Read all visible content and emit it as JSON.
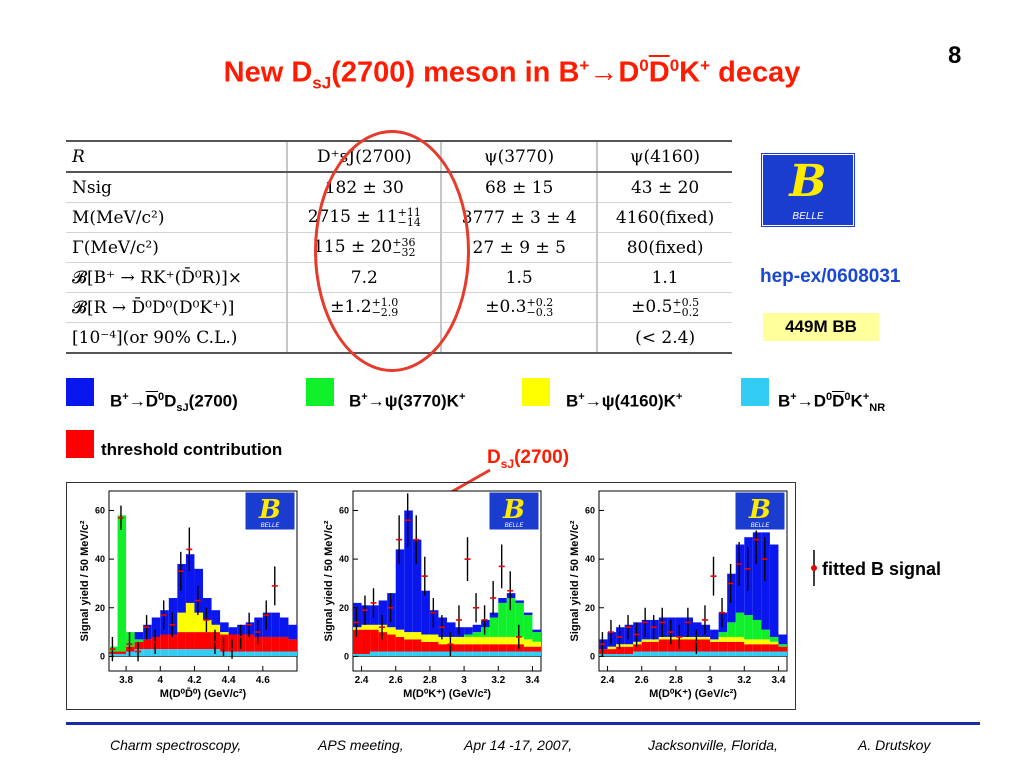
{
  "slide": {
    "number": "8",
    "title": {
      "t1": "New D",
      "sub1": "sJ",
      "t2": "(2700)  meson in B",
      "sup1": "+",
      "arrow": "→",
      "t3": "D",
      "sup2": "0",
      "t4": "D",
      "sup3": "0",
      "t5": "K",
      "sup4": "+",
      "t6": " decay"
    }
  },
  "table": {
    "header": [
      "R",
      "D⁺sJ(2700)",
      "ψ(3770)",
      "ψ(4160)"
    ],
    "rows": [
      {
        "label": "Nsig",
        "c1": "182 ± 30",
        "c2": "68 ± 15",
        "c3": "43 ± 20"
      },
      {
        "label": "M(MeV/c²)",
        "c1": "2715 ± 11",
        "c1_up": "+11",
        "c1_dn": "−14",
        "c2": "3777 ± 3 ± 4",
        "c3": "4160(fixed)"
      },
      {
        "label": "Γ(MeV/c²)",
        "c1": "115 ± 20",
        "c1_up": "+36",
        "c1_dn": "−32",
        "c2": "27 ± 9 ± 5",
        "c3": "80(fixed)"
      },
      {
        "label": "𝓑[B⁺ → RK⁺(D̄⁰R)]×",
        "c1": "7.2",
        "c2": "1.5",
        "c3": "1.1"
      },
      {
        "label": "𝓑[R → D̄⁰D⁰(D⁰K⁺)]",
        "c1": "±1.2",
        "c1_up": "+1.0",
        "c1_dn": "−2.9",
        "c2": "±0.3",
        "c2_up": "+0.2",
        "c2_dn": "−0.3",
        "c3": "±0.5",
        "c3_up": "+0.5",
        "c3_dn": "−0.2"
      },
      {
        "label": "[10⁻⁴](or 90% C.L.)",
        "c1": "",
        "c2": "",
        "c3": "(< 2.4)"
      }
    ]
  },
  "belle_logo": {
    "letter": "B",
    "text": "BELLE"
  },
  "arxiv_ref": "hep-ex/0608031",
  "bb_count": "449M BB",
  "legend": {
    "colors": {
      "blue": "#0a16ee",
      "green": "#10f02a",
      "yellow": "#ffff00",
      "cyan": "#33ccf5",
      "red": "#ff0000"
    },
    "items": [
      {
        "a": "B",
        "sup": "+",
        "arrow": "→",
        "b": "D",
        "sup2": "0",
        "c": "D",
        "sub": "sJ",
        "d": "(2700)"
      },
      {
        "a": "B",
        "sup": "+",
        "arrow": "→",
        "b": "ψ(3770)K",
        "sup2": "+"
      },
      {
        "a": "B",
        "sup": "+",
        "arrow": "→",
        "b": "ψ(4160)K",
        "sup2": "+"
      },
      {
        "a": "B",
        "sup": "+",
        "arrow": "→",
        "b": "D",
        "sup2": "0",
        "c": "D",
        "sup3": "0",
        "d": "K",
        "sup4": "+",
        "sub": "NR"
      }
    ],
    "threshold": "threshold contribution",
    "fitted": "fitted B signal"
  },
  "dsj_label": {
    "a": "D",
    "sub": "sJ",
    "b": "(2700)"
  },
  "chart_data": [
    {
      "type": "bar",
      "ylabel": "Signal yield / 50 MeV/c²",
      "xlabel": "M(D⁰D̄⁰) (GeV/c²)",
      "xlim": [
        3.7,
        4.8
      ],
      "ylim": [
        -6,
        68
      ],
      "xticks": [
        "3.8",
        "4",
        "4.2",
        "4.4",
        "4.6"
      ],
      "yticks": [
        "0",
        "20",
        "40",
        "60"
      ],
      "bin_width": 0.05,
      "bin_start": 3.7,
      "stacks": {
        "cyan": [
          1,
          1,
          2,
          3,
          3,
          3,
          3,
          3,
          3,
          3,
          3,
          3,
          3,
          2,
          2,
          2,
          2,
          2,
          2,
          2,
          2,
          2
        ],
        "red": [
          1,
          1,
          2,
          3,
          4,
          5,
          6,
          6,
          7,
          7,
          7,
          7,
          7,
          7,
          7,
          7,
          7,
          6,
          6,
          6,
          6,
          5
        ],
        "green": [
          2,
          56,
          6,
          1,
          0,
          0,
          0,
          0,
          0,
          0,
          0,
          0,
          0,
          0,
          0,
          0,
          0,
          0,
          0,
          0,
          0,
          0
        ],
        "blue": [
          0,
          0,
          0,
          3,
          6,
          8,
          10,
          15,
          20,
          20,
          18,
          9,
          6,
          4,
          3,
          4,
          5,
          8,
          10,
          10,
          8,
          6
        ],
        "yellow": [
          0,
          0,
          0,
          0,
          0,
          0,
          0,
          0,
          8,
          12,
          8,
          5,
          3,
          1,
          0,
          0,
          0,
          0,
          0,
          0,
          0,
          0
        ]
      },
      "points": [
        [
          3.72,
          3,
          5
        ],
        [
          3.77,
          57,
          5
        ],
        [
          3.82,
          5,
          5
        ],
        [
          3.87,
          2,
          4
        ],
        [
          3.92,
          12,
          5
        ],
        [
          3.97,
          6,
          5
        ],
        [
          4.02,
          17,
          6
        ],
        [
          4.07,
          13,
          5
        ],
        [
          4.12,
          35,
          8
        ],
        [
          4.17,
          44,
          9
        ],
        [
          4.22,
          23,
          6
        ],
        [
          4.27,
          15,
          5
        ],
        [
          4.32,
          6,
          5
        ],
        [
          4.37,
          4,
          4
        ],
        [
          4.42,
          3,
          4
        ],
        [
          4.47,
          8,
          5
        ],
        [
          4.52,
          13,
          5
        ],
        [
          4.57,
          10,
          5
        ],
        [
          4.62,
          17,
          6
        ],
        [
          4.67,
          29,
          8
        ]
      ]
    },
    {
      "type": "bar",
      "ylabel": "Signal yield / 50 MeV/c²",
      "xlabel": "M(D⁰K⁺) (GeV/c²)",
      "xlim": [
        2.35,
        3.45
      ],
      "ylim": [
        -6,
        68
      ],
      "xticks": [
        "2.4",
        "2.6",
        "2.8",
        "3",
        "3.2",
        "3.4"
      ],
      "yticks": [
        "0",
        "20",
        "40",
        "60"
      ],
      "bin_width": 0.05,
      "bin_start": 2.35,
      "stacks": {
        "cyan": [
          1,
          1,
          2,
          2,
          2,
          2,
          2,
          2,
          2,
          2,
          2,
          2,
          2,
          2,
          2,
          2,
          2,
          2,
          2,
          2,
          2,
          2
        ],
        "red": [
          10,
          10,
          9,
          8,
          7,
          6,
          5,
          5,
          4,
          4,
          3,
          3,
          3,
          3,
          3,
          3,
          3,
          3,
          3,
          3,
          2,
          2
        ],
        "green": [
          0,
          0,
          0,
          0,
          0,
          0,
          0,
          0,
          0,
          0,
          0,
          0,
          0,
          1,
          2,
          4,
          8,
          14,
          16,
          14,
          10,
          4
        ],
        "blue": [
          10,
          8,
          8,
          10,
          14,
          33,
          50,
          38,
          18,
          10,
          8,
          6,
          4,
          3,
          3,
          3,
          2,
          2,
          2,
          1,
          1,
          1
        ],
        "yellow": [
          1,
          2,
          2,
          3,
          3,
          3,
          3,
          3,
          3,
          3,
          3,
          3,
          3,
          3,
          3,
          3,
          3,
          3,
          3,
          3,
          3,
          2
        ]
      },
      "points": [
        [
          2.37,
          14,
          6
        ],
        [
          2.42,
          19,
          6
        ],
        [
          2.47,
          22,
          6
        ],
        [
          2.52,
          12,
          5
        ],
        [
          2.57,
          20,
          6
        ],
        [
          2.62,
          48,
          10
        ],
        [
          2.67,
          56,
          11
        ],
        [
          2.72,
          48,
          10
        ],
        [
          2.77,
          33,
          8
        ],
        [
          2.82,
          18,
          6
        ],
        [
          2.87,
          12,
          5
        ],
        [
          2.92,
          5,
          5
        ],
        [
          2.97,
          15,
          6
        ],
        [
          3.02,
          40,
          9
        ],
        [
          3.07,
          20,
          6
        ],
        [
          3.12,
          15,
          6
        ],
        [
          3.17,
          24,
          7
        ],
        [
          3.22,
          37,
          9
        ],
        [
          3.27,
          27,
          8
        ],
        [
          3.32,
          8,
          5
        ]
      ]
    },
    {
      "type": "bar",
      "ylabel": "Signal yield / 50 MeV/c²",
      "xlabel": "M(D⁰K⁺) (GeV/c²)",
      "xlim": [
        2.35,
        3.45
      ],
      "ylim": [
        -6,
        68
      ],
      "xticks": [
        "2.4",
        "2.6",
        "2.8",
        "3",
        "3.2",
        "3.4"
      ],
      "yticks": [
        "0",
        "20",
        "40",
        "60"
      ],
      "bin_width": 0.05,
      "bin_start": 2.35,
      "stacks": {
        "cyan": [
          1,
          1,
          1,
          1,
          2,
          2,
          2,
          2,
          2,
          2,
          2,
          2,
          2,
          2,
          2,
          2,
          2,
          2,
          2,
          2,
          2,
          2
        ],
        "red": [
          2,
          2,
          3,
          3,
          3,
          4,
          4,
          5,
          5,
          5,
          5,
          5,
          5,
          4,
          4,
          4,
          4,
          3,
          3,
          3,
          3,
          2
        ],
        "green": [
          0,
          0,
          0,
          0,
          0,
          0,
          0,
          0,
          0,
          0,
          0,
          0,
          0,
          0,
          2,
          6,
          10,
          10,
          8,
          4,
          2,
          1
        ],
        "blue": [
          4,
          6,
          7,
          8,
          8,
          8,
          8,
          8,
          8,
          8,
          8,
          6,
          5,
          4,
          8,
          20,
          28,
          32,
          36,
          40,
          38,
          4
        ],
        "yellow": [
          0,
          1,
          1,
          1,
          1,
          1,
          1,
          1,
          1,
          1,
          1,
          1,
          1,
          1,
          2,
          2,
          2,
          2,
          2,
          2,
          1,
          0
        ]
      },
      "points": [
        [
          2.37,
          5,
          5
        ],
        [
          2.42,
          10,
          5
        ],
        [
          2.47,
          8,
          5
        ],
        [
          2.52,
          12,
          5
        ],
        [
          2.57,
          9,
          5
        ],
        [
          2.62,
          14,
          6
        ],
        [
          2.67,
          12,
          5
        ],
        [
          2.72,
          14,
          6
        ],
        [
          2.77,
          10,
          5
        ],
        [
          2.82,
          8,
          5
        ],
        [
          2.87,
          14,
          6
        ],
        [
          2.92,
          6,
          5
        ],
        [
          2.97,
          15,
          6
        ],
        [
          3.02,
          33,
          8
        ],
        [
          3.07,
          18,
          6
        ],
        [
          3.12,
          30,
          8
        ],
        [
          3.17,
          38,
          9
        ],
        [
          3.22,
          36,
          9
        ],
        [
          3.27,
          48,
          10
        ],
        [
          3.32,
          40,
          9
        ]
      ]
    }
  ],
  "footer": {
    "talk": "Charm spectroscopy,",
    "meeting": "APS meeting,",
    "date": "Apr 14 -17, 2007,",
    "place": "Jacksonville, Florida,",
    "author": "A. Drutskoy"
  }
}
